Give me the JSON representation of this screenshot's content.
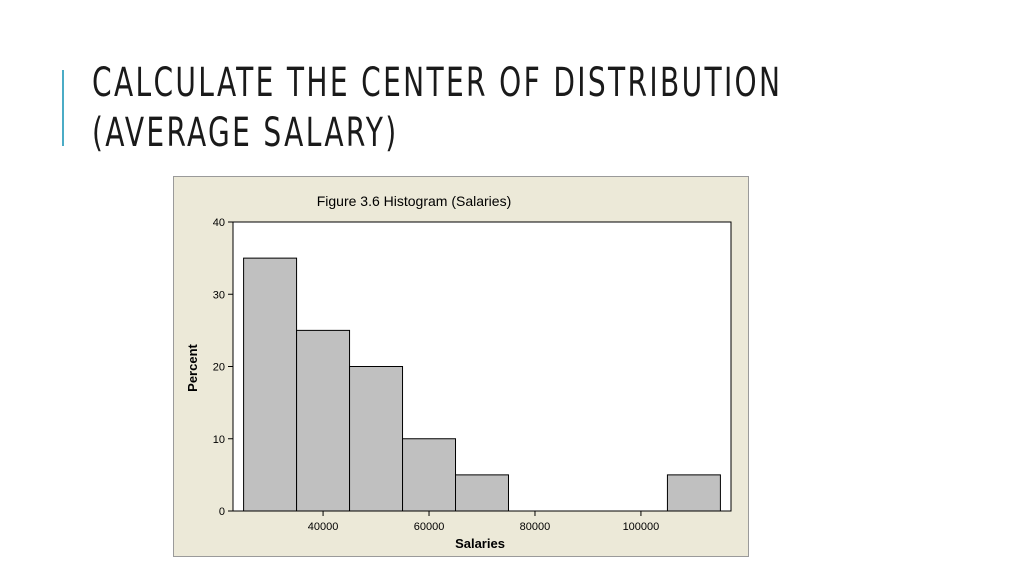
{
  "slide": {
    "title_line1": "CALCULATE THE CENTER OF DISTRIBUTION",
    "title_line2": "(AVERAGE SALARY)",
    "accent_color": "#4bacc6"
  },
  "chart_data": {
    "type": "bar",
    "title": "Figure 3.6 Histogram (Salaries)",
    "xlabel": "Salaries",
    "ylabel": "Percent",
    "bins": [
      {
        "from": 25000,
        "to": 35000,
        "value": 35
      },
      {
        "from": 35000,
        "to": 45000,
        "value": 25
      },
      {
        "from": 45000,
        "to": 55000,
        "value": 20
      },
      {
        "from": 55000,
        "to": 65000,
        "value": 10
      },
      {
        "from": 65000,
        "to": 75000,
        "value": 5
      },
      {
        "from": 75000,
        "to": 85000,
        "value": 0
      },
      {
        "from": 85000,
        "to": 95000,
        "value": 0
      },
      {
        "from": 95000,
        "to": 105000,
        "value": 0
      },
      {
        "from": 105000,
        "to": 115000,
        "value": 5
      }
    ],
    "xlim": [
      23000,
      117000
    ],
    "ylim": [
      0,
      40
    ],
    "xticks": [
      40000,
      60000,
      80000,
      100000
    ],
    "yticks": [
      0,
      10,
      20,
      30,
      40
    ],
    "grid": false,
    "colors": {
      "bar_fill": "#c0c0c0",
      "bar_stroke": "#000000",
      "plot_bg": "#ffffff",
      "frame_bg": "#ece9d8"
    }
  }
}
